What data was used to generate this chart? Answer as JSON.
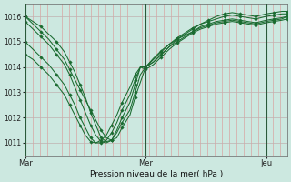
{
  "title": "",
  "xlabel": "Pression niveau de la mer( hPa )",
  "ylim": [
    1010.5,
    1016.5
  ],
  "yticks": [
    1011,
    1012,
    1013,
    1014,
    1015,
    1016
  ],
  "background_color": "#cce8e0",
  "line_color": "#1a6b30",
  "marker_color": "#1a6b30",
  "vline_color": "#2a5a3a",
  "xtick_labels": [
    "Mar",
    "Mer",
    "Jeu"
  ],
  "xtick_positions": [
    0.0,
    0.46,
    0.92
  ],
  "series": [
    {
      "x": [
        0.0,
        0.03,
        0.06,
        0.09,
        0.12,
        0.15,
        0.17,
        0.19,
        0.21,
        0.23,
        0.25,
        0.27,
        0.29,
        0.31,
        0.33,
        0.35,
        0.37,
        0.4,
        0.42,
        0.44,
        0.46,
        0.49,
        0.52,
        0.55,
        0.58,
        0.61,
        0.64,
        0.67,
        0.7,
        0.73,
        0.76,
        0.79,
        0.82,
        0.85,
        0.88,
        0.92,
        0.95,
        0.98,
        1.0
      ],
      "y": [
        1016.0,
        1015.8,
        1015.6,
        1015.3,
        1015.0,
        1014.6,
        1014.2,
        1013.8,
        1013.3,
        1012.8,
        1012.2,
        1011.7,
        1011.2,
        1011.05,
        1011.1,
        1011.4,
        1011.8,
        1012.3,
        1013.0,
        1013.7,
        1014.0,
        1014.2,
        1014.5,
        1014.8,
        1015.1,
        1015.3,
        1015.5,
        1015.7,
        1015.85,
        1016.0,
        1016.1,
        1016.15,
        1016.1,
        1016.05,
        1016.0,
        1016.1,
        1016.15,
        1016.2,
        1016.2
      ]
    },
    {
      "x": [
        0.0,
        0.03,
        0.06,
        0.09,
        0.12,
        0.15,
        0.17,
        0.19,
        0.21,
        0.23,
        0.25,
        0.27,
        0.29,
        0.31,
        0.33,
        0.35,
        0.37,
        0.4,
        0.42,
        0.44,
        0.46,
        0.49,
        0.52,
        0.55,
        0.58,
        0.61,
        0.64,
        0.67,
        0.7,
        0.73,
        0.76,
        0.79,
        0.82,
        0.85,
        0.88,
        0.92,
        0.95,
        0.98,
        1.0
      ],
      "y": [
        1015.8,
        1015.5,
        1015.2,
        1014.9,
        1014.5,
        1014.1,
        1013.7,
        1013.2,
        1012.7,
        1012.2,
        1011.7,
        1011.3,
        1011.05,
        1011.0,
        1011.1,
        1011.5,
        1012.0,
        1012.6,
        1013.3,
        1014.0,
        1014.0,
        1014.3,
        1014.6,
        1014.9,
        1015.15,
        1015.35,
        1015.55,
        1015.7,
        1015.8,
        1015.9,
        1016.0,
        1016.05,
        1016.0,
        1015.95,
        1015.9,
        1016.0,
        1016.05,
        1016.1,
        1016.1
      ]
    },
    {
      "x": [
        0.0,
        0.03,
        0.06,
        0.09,
        0.12,
        0.15,
        0.17,
        0.19,
        0.21,
        0.23,
        0.25,
        0.27,
        0.29,
        0.31,
        0.33,
        0.35,
        0.37,
        0.4,
        0.42,
        0.44,
        0.46,
        0.49,
        0.52,
        0.55,
        0.58,
        0.61,
        0.64,
        0.67,
        0.7,
        0.73,
        0.76,
        0.79,
        0.82,
        0.85,
        0.88,
        0.92,
        0.95,
        0.98,
        1.0
      ],
      "y": [
        1015.0,
        1014.7,
        1014.4,
        1014.1,
        1013.7,
        1013.3,
        1012.9,
        1012.5,
        1012.0,
        1011.6,
        1011.2,
        1011.0,
        1011.0,
        1011.1,
        1011.4,
        1011.8,
        1012.3,
        1012.9,
        1013.5,
        1014.0,
        1014.0,
        1014.2,
        1014.5,
        1014.8,
        1015.0,
        1015.2,
        1015.4,
        1015.6,
        1015.7,
        1015.8,
        1015.85,
        1015.9,
        1015.85,
        1015.8,
        1015.75,
        1015.85,
        1015.9,
        1015.95,
        1016.0
      ]
    },
    {
      "x": [
        0.0,
        0.03,
        0.06,
        0.09,
        0.12,
        0.15,
        0.17,
        0.19,
        0.21,
        0.23,
        0.25,
        0.27,
        0.29,
        0.31,
        0.33,
        0.35,
        0.37,
        0.4,
        0.42,
        0.44,
        0.46,
        0.49,
        0.52,
        0.55,
        0.58,
        0.61,
        0.64,
        0.67,
        0.7,
        0.73,
        0.76,
        0.79,
        0.82,
        0.85,
        0.88,
        0.92,
        0.95,
        0.98,
        1.0
      ],
      "y": [
        1014.5,
        1014.3,
        1014.0,
        1013.7,
        1013.3,
        1012.9,
        1012.5,
        1012.1,
        1011.7,
        1011.3,
        1011.05,
        1011.0,
        1011.1,
        1011.3,
        1011.7,
        1012.1,
        1012.6,
        1013.2,
        1013.7,
        1014.0,
        1013.9,
        1014.1,
        1014.4,
        1014.7,
        1014.95,
        1015.15,
        1015.35,
        1015.5,
        1015.6,
        1015.7,
        1015.75,
        1015.8,
        1015.75,
        1015.7,
        1015.65,
        1015.75,
        1015.8,
        1015.85,
        1015.9
      ]
    },
    {
      "x": [
        0.0,
        0.03,
        0.06,
        0.09,
        0.12,
        0.15,
        0.17,
        0.19,
        0.21,
        0.23,
        0.25,
        0.27,
        0.29,
        0.31,
        0.33,
        0.35,
        0.37,
        0.4,
        0.42,
        0.44,
        0.46,
        0.49,
        0.52,
        0.55,
        0.58,
        0.61,
        0.64,
        0.67,
        0.7,
        0.73,
        0.76,
        0.79,
        0.82,
        0.85,
        0.88,
        0.92,
        0.95,
        0.98,
        1.0
      ],
      "y": [
        1016.0,
        1015.7,
        1015.4,
        1015.1,
        1014.7,
        1014.3,
        1013.9,
        1013.5,
        1013.1,
        1012.7,
        1012.3,
        1011.9,
        1011.5,
        1011.2,
        1011.1,
        1011.2,
        1011.6,
        1012.1,
        1012.8,
        1013.4,
        1014.0,
        1014.35,
        1014.65,
        1014.9,
        1015.1,
        1015.25,
        1015.4,
        1015.55,
        1015.65,
        1015.75,
        1015.8,
        1015.85,
        1015.8,
        1015.75,
        1015.7,
        1015.8,
        1015.85,
        1015.9,
        1016.0
      ]
    }
  ]
}
